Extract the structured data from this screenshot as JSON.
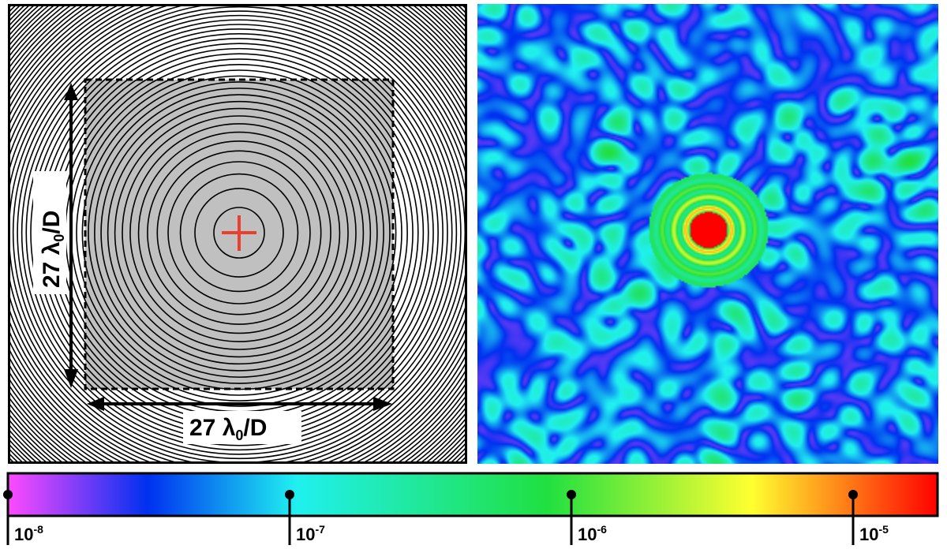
{
  "left_panel": {
    "dim_horizontal": {
      "value": "27",
      "unit_main": "λ",
      "unit_sub": "0",
      "unit_rest": "/D"
    },
    "dim_vertical": {
      "value": "27",
      "unit_main": "λ",
      "unit_sub": "0",
      "unit_rest": "/D"
    },
    "colors": {
      "shaded_region": "#c0c0c0",
      "center_marker": "#e8402c",
      "rings": "#000000"
    }
  },
  "colorbar": {
    "ticks": [
      {
        "base": "10",
        "exp": "-8"
      },
      {
        "base": "10",
        "exp": "-7"
      },
      {
        "base": "10",
        "exp": "-6"
      },
      {
        "base": "10",
        "exp": "-5"
      }
    ],
    "scale": "log",
    "colors": [
      "#ff4bff",
      "#0030f0",
      "#20f0f0",
      "#20e040",
      "#ffff30",
      "#ff0000"
    ]
  }
}
